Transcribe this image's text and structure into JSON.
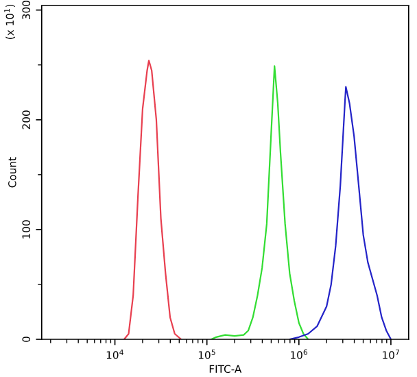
{
  "chart_data": {
    "type": "line",
    "xlabel": "FITC-A",
    "ylabel": "Count",
    "annotations": [
      "(x 10$^{1}$)"
    ],
    "log": "x",
    "xlim": [
      1600,
      15600000.0
    ],
    "ylim": [
      0,
      304
    ],
    "xticks": [
      {
        "value": 10000,
        "label": "10$^{4}$"
      },
      {
        "value": 100000,
        "label": "10$^{5}$"
      },
      {
        "value": 1000000,
        "label": "10$^{6}$"
      },
      {
        "value": 10000000,
        "label": "10$^{7}$"
      }
    ],
    "yticks": [
      0,
      100,
      200,
      300
    ],
    "grid": false,
    "legend": false,
    "marker": "none",
    "line_style": "solid",
    "series": [
      {
        "color": "#e84050",
        "x": [
          12600.0,
          14100.0,
          15800.0,
          17800.0,
          20000.0,
          22400.0,
          23400.0,
          25100.0,
          28200.0,
          31600.0,
          35500.0,
          39800.0,
          44700.0,
          52500.0
        ],
        "values": [
          0,
          5,
          40,
          130,
          210,
          245,
          254,
          245,
          200,
          110,
          60,
          20,
          5,
          0
        ]
      },
      {
        "color": "#33dd33",
        "x": [
          112000.0,
          126000.0,
          158000.0,
          200000.0,
          251000.0,
          282000.0,
          316000.0,
          355000.0,
          398000.0,
          447000.0,
          501000.0,
          543000.0,
          589000.0,
          631000.0,
          708000.0,
          794000.0,
          891000.0,
          1000000.0,
          1120000.0,
          1260000.0
        ],
        "values": [
          0,
          2,
          4,
          3,
          4,
          8,
          20,
          40,
          65,
          105,
          190,
          249,
          215,
          170,
          105,
          60,
          35,
          15,
          5,
          0
        ]
      },
      {
        "color": "#2424c8",
        "x": [
          794000.0,
          1000000.0,
          1260000.0,
          1580000.0,
          2000000.0,
          2240000.0,
          2510000.0,
          2820000.0,
          3160000.0,
          3240000.0,
          3550000.0,
          3980000.0,
          4470000.0,
          5010000.0,
          5620000.0,
          6310000.0,
          7080000.0,
          7940000.0,
          8910000.0,
          10000000.0
        ],
        "values": [
          0,
          2,
          5,
          12,
          30,
          50,
          85,
          140,
          215,
          230,
          215,
          185,
          140,
          95,
          70,
          55,
          40,
          20,
          8,
          0
        ]
      }
    ]
  }
}
